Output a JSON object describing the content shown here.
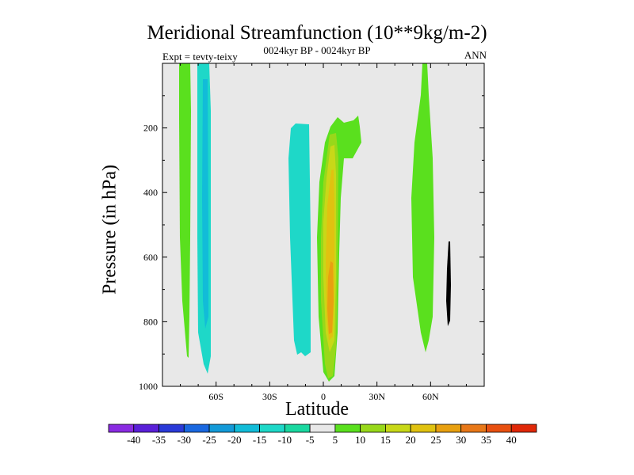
{
  "chart_data": {
    "type": "contour",
    "title": "Meridional Streamfunction (10**9kg/m-2)",
    "left_label": "Expt = tevty-teixy",
    "center_label": "0024kyr BP - 0024kyr BP",
    "right_label": "ANN",
    "xlabel": "Latitude",
    "ylabel": "Pressure (in hPa)",
    "xlim": [
      -90,
      90
    ],
    "ylim": [
      1000,
      0
    ],
    "y_reversed": true,
    "x_ticks": [
      {
        "value": -60,
        "label": "60S"
      },
      {
        "value": -30,
        "label": "30S"
      },
      {
        "value": 0,
        "label": "0"
      },
      {
        "value": 30,
        "label": "30N"
      },
      {
        "value": 60,
        "label": "60N"
      }
    ],
    "y_ticks": [
      {
        "value": 200,
        "label": "200"
      },
      {
        "value": 400,
        "label": "400"
      },
      {
        "value": 600,
        "label": "600"
      },
      {
        "value": 800,
        "label": "800"
      },
      {
        "value": 1000,
        "label": "1000"
      }
    ],
    "background_color": "#e8e8e8",
    "colorbar": {
      "orientation": "horizontal",
      "labels": [
        "-40",
        "-35",
        "-30",
        "-25",
        "-20",
        "-15",
        "-10",
        "-5",
        "5",
        "10",
        "15",
        "20",
        "25",
        "30",
        "35",
        "40"
      ],
      "colors": [
        "#8a2be2",
        "#5a20d8",
        "#2a3ad8",
        "#1a68e0",
        "#139ad8",
        "#12bcd8",
        "#1ed8c8",
        "#1ad8a0",
        "#e8e8e8",
        "#5ae01e",
        "#98d81a",
        "#c8d818",
        "#e0c210",
        "#e8a010",
        "#e87818",
        "#e85010",
        "#e02808"
      ]
    },
    "features": [
      {
        "sign": "positive",
        "level": 5,
        "color": "#5ae01e",
        "lat_range": [
          -78,
          -74
        ],
        "p_range": [
          0,
          900
        ]
      },
      {
        "sign": "negative",
        "level": -10,
        "color": "#1ed8c8",
        "lat_range": [
          -68,
          -61
        ],
        "p_range": [
          0,
          960
        ]
      },
      {
        "sign": "negative",
        "level": -15,
        "color": "#12bcd8",
        "lat_range": [
          -64,
          -62
        ],
        "p_range": [
          100,
          820
        ]
      },
      {
        "sign": "negative",
        "level": -10,
        "color": "#1ed8c8",
        "lat_range": [
          -20,
          -7
        ],
        "p_range": [
          180,
          900
        ]
      },
      {
        "sign": "positive",
        "level": 5,
        "color": "#5ae01e",
        "lat_range": [
          -1,
          22
        ],
        "p_range": [
          150,
          980
        ]
      },
      {
        "sign": "positive",
        "level": 10,
        "color": "#98d81a",
        "lat_range": [
          1,
          10
        ],
        "p_range": [
          170,
          970
        ]
      },
      {
        "sign": "positive",
        "level": 15,
        "color": "#c8d818",
        "lat_range": [
          2,
          9
        ],
        "p_range": [
          200,
          900
        ]
      },
      {
        "sign": "positive",
        "level": 20,
        "color": "#e0c210",
        "lat_range": [
          3,
          8
        ],
        "p_range": [
          280,
          880
        ]
      },
      {
        "sign": "positive",
        "level": 25,
        "color": "#e8a010",
        "lat_range": [
          4,
          7
        ],
        "p_range": [
          600,
          880
        ]
      },
      {
        "sign": "positive",
        "level": 5,
        "color": "#5ae01e",
        "lat_range": [
          50,
          62
        ],
        "p_range": [
          0,
          890
        ]
      },
      {
        "sign": "positive",
        "level": 5,
        "color": "#5ae01e",
        "lat_range": [
          70,
          71
        ],
        "p_range": [
          550,
          810
        ]
      }
    ]
  }
}
